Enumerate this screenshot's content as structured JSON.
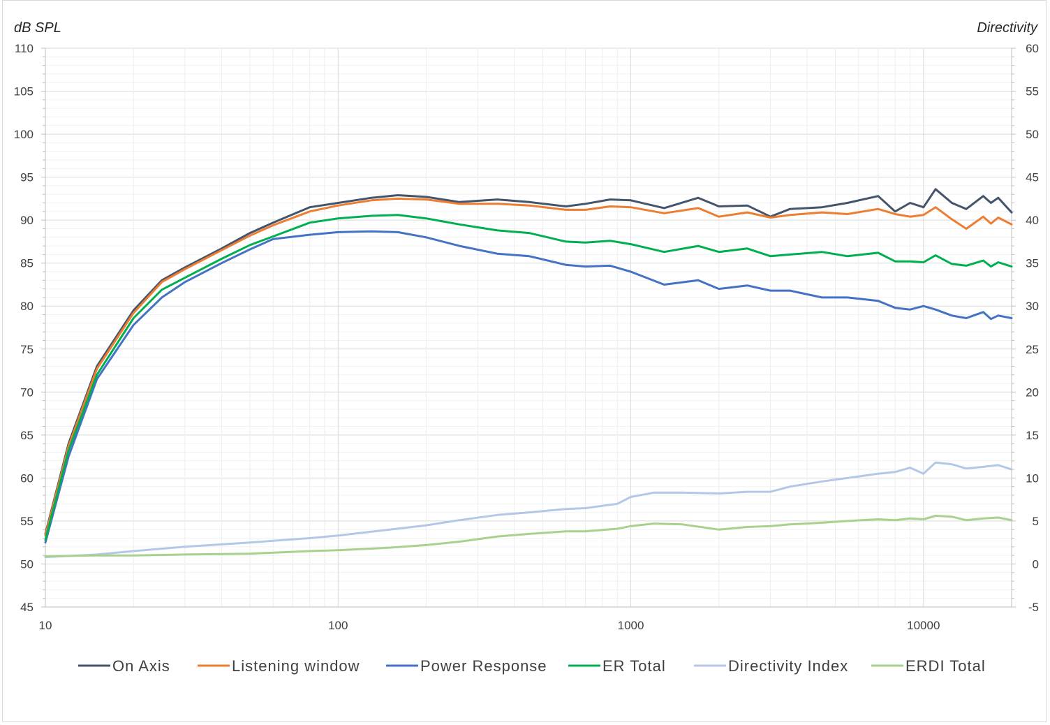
{
  "chart_data": {
    "type": "line",
    "title": "",
    "xlabel": "",
    "ylabel": "dB SPL",
    "y2label": "Directivity",
    "xscale": "log",
    "xlim": [
      10,
      20000
    ],
    "ylim": [
      45,
      110
    ],
    "y2lim": [
      -5,
      60
    ],
    "x_ticks": [
      "10",
      "100",
      "1000",
      "10000"
    ],
    "y_ticks": [
      "45",
      "50",
      "55",
      "60",
      "65",
      "70",
      "75",
      "80",
      "85",
      "90",
      "95",
      "100",
      "105",
      "110"
    ],
    "y2_ticks": [
      "-5",
      "0",
      "5",
      "10",
      "15",
      "20",
      "25",
      "30",
      "35",
      "40",
      "45",
      "50",
      "55",
      "60"
    ],
    "grid": true,
    "legend_position": "bottom",
    "series": [
      {
        "name": "On Axis",
        "color": "#44546a",
        "axis": "left",
        "x": [
          10,
          12,
          15,
          20,
          25,
          30,
          40,
          50,
          60,
          80,
          100,
          130,
          160,
          200,
          260,
          350,
          450,
          600,
          700,
          850,
          1000,
          1300,
          1700,
          2000,
          2500,
          3000,
          3500,
          4500,
          5500,
          7000,
          8000,
          9000,
          10000,
          11000,
          12500,
          14000,
          16000,
          17000,
          18000,
          20000
        ],
        "y": [
          53.5,
          64,
          73,
          79.5,
          83,
          84.5,
          86.7,
          88.5,
          89.7,
          91.5,
          92.0,
          92.6,
          92.9,
          92.7,
          92.1,
          92.4,
          92.1,
          91.6,
          91.9,
          92.4,
          92.3,
          91.4,
          92.6,
          91.6,
          91.7,
          90.4,
          91.3,
          91.5,
          92.0,
          92.8,
          91.0,
          92.0,
          91.5,
          93.6,
          92.0,
          91.3,
          92.8,
          92.0,
          92.6,
          90.9
        ]
      },
      {
        "name": "Listening window",
        "color": "#ed7d31",
        "axis": "left",
        "x": [
          10,
          12,
          15,
          20,
          25,
          30,
          40,
          50,
          60,
          80,
          100,
          130,
          160,
          200,
          260,
          350,
          450,
          600,
          700,
          850,
          1000,
          1300,
          1700,
          2000,
          2500,
          3000,
          3500,
          4500,
          5500,
          7000,
          8000,
          9000,
          10000,
          11000,
          12500,
          14000,
          16000,
          17000,
          18000,
          20000
        ],
        "y": [
          53.3,
          63.7,
          72.7,
          79.2,
          82.8,
          84.3,
          86.5,
          88.2,
          89.4,
          91.0,
          91.7,
          92.3,
          92.5,
          92.4,
          91.9,
          91.9,
          91.7,
          91.2,
          91.2,
          91.6,
          91.5,
          90.8,
          91.4,
          90.4,
          90.9,
          90.3,
          90.6,
          90.9,
          90.7,
          91.3,
          90.7,
          90.4,
          90.6,
          91.5,
          90.1,
          89.0,
          90.4,
          89.6,
          90.3,
          89.5
        ]
      },
      {
        "name": "Power Response",
        "color": "#4472c4",
        "axis": "left",
        "x": [
          10,
          12,
          15,
          20,
          25,
          30,
          40,
          50,
          60,
          80,
          100,
          130,
          160,
          200,
          260,
          350,
          450,
          600,
          700,
          850,
          1000,
          1300,
          1700,
          2000,
          2500,
          3000,
          3500,
          4500,
          5500,
          7000,
          8000,
          9000,
          10000,
          11000,
          12500,
          14000,
          16000,
          17000,
          18000,
          20000
        ],
        "y": [
          52.5,
          62.5,
          71.5,
          77.8,
          81.0,
          82.8,
          85.0,
          86.6,
          87.8,
          88.3,
          88.6,
          88.7,
          88.6,
          88.0,
          87.0,
          86.1,
          85.8,
          84.8,
          84.6,
          84.7,
          84.0,
          82.5,
          83.0,
          82.0,
          82.4,
          81.8,
          81.8,
          81.0,
          81.0,
          80.6,
          79.8,
          79.6,
          80.0,
          79.6,
          78.9,
          78.6,
          79.3,
          78.5,
          78.9,
          78.6
        ]
      },
      {
        "name": "ER Total",
        "color": "#00b050",
        "axis": "left",
        "x": [
          10,
          12,
          15,
          20,
          25,
          30,
          40,
          50,
          60,
          80,
          100,
          130,
          160,
          200,
          260,
          350,
          450,
          600,
          700,
          850,
          1000,
          1300,
          1700,
          2000,
          2500,
          3000,
          3500,
          4500,
          5500,
          7000,
          8000,
          9000,
          10000,
          11000,
          12500,
          14000,
          16000,
          17000,
          18000,
          20000
        ],
        "y": [
          52.8,
          63.2,
          72.0,
          78.6,
          81.9,
          83.3,
          85.5,
          87.1,
          88.1,
          89.7,
          90.2,
          90.5,
          90.6,
          90.2,
          89.5,
          88.8,
          88.5,
          87.5,
          87.4,
          87.6,
          87.2,
          86.3,
          87.0,
          86.3,
          86.7,
          85.8,
          86.0,
          86.3,
          85.8,
          86.2,
          85.2,
          85.2,
          85.1,
          85.9,
          84.9,
          84.7,
          85.3,
          84.6,
          85.1,
          84.6
        ]
      },
      {
        "name": "Directivity Index",
        "color": "#b4c7e7",
        "axis": "right",
        "x": [
          10,
          15,
          20,
          30,
          50,
          80,
          100,
          150,
          200,
          260,
          350,
          450,
          600,
          700,
          900,
          1000,
          1200,
          1500,
          2000,
          2500,
          3000,
          3500,
          4500,
          5500,
          7000,
          8000,
          9000,
          10000,
          11000,
          12500,
          14000,
          16000,
          18000,
          20000
        ],
        "y": [
          0.8,
          1.1,
          1.5,
          2.0,
          2.5,
          3.0,
          3.3,
          4.0,
          4.5,
          5.1,
          5.7,
          6.0,
          6.4,
          6.5,
          7.0,
          7.8,
          8.3,
          8.3,
          8.2,
          8.4,
          8.4,
          9.0,
          9.6,
          10.0,
          10.5,
          10.7,
          11.2,
          10.5,
          11.8,
          11.6,
          11.1,
          11.3,
          11.5,
          11.0
        ]
      },
      {
        "name": "ERDI Total",
        "color": "#a9d18e",
        "axis": "right",
        "x": [
          10,
          15,
          20,
          30,
          50,
          80,
          100,
          150,
          200,
          260,
          350,
          450,
          600,
          700,
          900,
          1000,
          1200,
          1500,
          2000,
          2500,
          3000,
          3500,
          4500,
          5500,
          7000,
          8000,
          9000,
          10000,
          11000,
          12500,
          14000,
          16000,
          18000,
          20000
        ],
        "y": [
          0.9,
          1.0,
          1.0,
          1.1,
          1.2,
          1.5,
          1.6,
          1.9,
          2.2,
          2.6,
          3.2,
          3.5,
          3.8,
          3.8,
          4.1,
          4.4,
          4.7,
          4.6,
          4.0,
          4.3,
          4.4,
          4.6,
          4.8,
          5.0,
          5.2,
          5.1,
          5.3,
          5.2,
          5.6,
          5.5,
          5.1,
          5.3,
          5.4,
          5.1
        ]
      }
    ]
  }
}
